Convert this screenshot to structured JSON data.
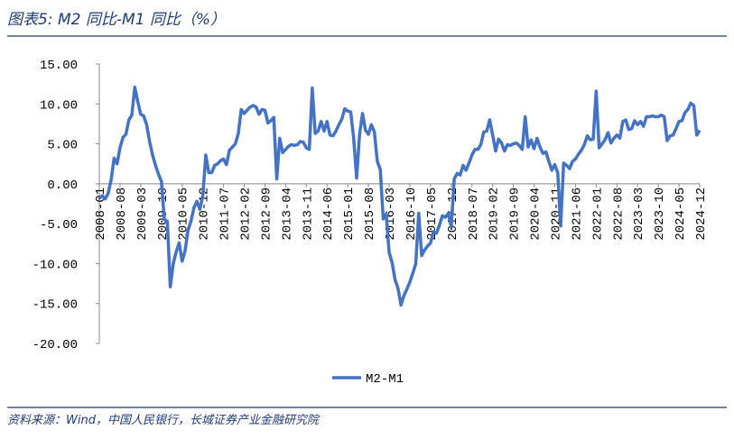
{
  "chart_data": {
    "type": "line",
    "title": "图表5:  M2 同比-M1 同比（%）",
    "source": "资料来源：Wind，中国人民银行，长城证券产业金融研究院",
    "categories": [
      "2008-01",
      null,
      null,
      null,
      null,
      null,
      null,
      "2008-08",
      null,
      null,
      null,
      null,
      null,
      null,
      "2009-03",
      null,
      null,
      null,
      null,
      null,
      null,
      "2009-10",
      null,
      null,
      null,
      null,
      null,
      null,
      "2010-05",
      null,
      null,
      null,
      null,
      null,
      null,
      "2010-12",
      null,
      null,
      null,
      null,
      null,
      null,
      "2011-07",
      null,
      null,
      null,
      null,
      null,
      null,
      "2012-02",
      null,
      null,
      null,
      null,
      null,
      null,
      "2012-09",
      null,
      null,
      null,
      null,
      null,
      null,
      "2013-04",
      null,
      null,
      null,
      null,
      null,
      null,
      "2013-11",
      null,
      null,
      null,
      null,
      null,
      null,
      "2014-06",
      null,
      null,
      null,
      null,
      null,
      null,
      "2015-01",
      null,
      null,
      null,
      null,
      null,
      null,
      "2015-08",
      null,
      null,
      null,
      null,
      null,
      null,
      "2016-03",
      null,
      null,
      null,
      null,
      null,
      null,
      "2016-10",
      null,
      null,
      null,
      null,
      null,
      null,
      "2017-05",
      null,
      null,
      null,
      null,
      null,
      null,
      "2017-12",
      null,
      null,
      null,
      null,
      null,
      null,
      "2018-07",
      null,
      null,
      null,
      null,
      null,
      null,
      "2019-02",
      null,
      null,
      null,
      null,
      null,
      null,
      "2019-09",
      null,
      null,
      null,
      null,
      null,
      null,
      "2020-04",
      null,
      null,
      null,
      null,
      null,
      null,
      "2020-11",
      null,
      null,
      null,
      null,
      null,
      null,
      "2021-06",
      null,
      null,
      null,
      null,
      null,
      null,
      "2022-01",
      null,
      null,
      null,
      null,
      null,
      null,
      "2022-08",
      null,
      null,
      null,
      null,
      null,
      null,
      "2023-03",
      null,
      null,
      null,
      null,
      null,
      null,
      "2023-10",
      null,
      null,
      null,
      null,
      null,
      null,
      "2024-05",
      null,
      null,
      null,
      null,
      null,
      null,
      "2024-12"
    ],
    "series": [
      {
        "name": "M2-M1",
        "color": "#4472c4",
        "values": [
          -1.8,
          -1.5,
          -1.9,
          -1.2,
          0.5,
          3.2,
          2.5,
          4.5,
          5.8,
          6.2,
          8.0,
          8.6,
          12.1,
          10.3,
          8.7,
          8.5,
          7.4,
          5.3,
          3.6,
          2.3,
          1.2,
          0.3,
          -4.5,
          -4.7,
          -12.9,
          -10.0,
          -8.5,
          -7.4,
          -9.7,
          -8.4,
          -5.8,
          -4.7,
          -3.0,
          -2.2,
          -3.2,
          -1.5,
          3.6,
          1.4,
          1.4,
          2.3,
          2.5,
          2.9,
          3.1,
          2.4,
          4.2,
          4.6,
          5.0,
          6.3,
          9.3,
          8.8,
          9.2,
          9.6,
          9.8,
          9.6,
          8.7,
          9.3,
          9.2,
          7.6,
          7.9,
          8.3,
          0.6,
          5.7,
          3.9,
          4.3,
          4.7,
          4.9,
          4.8,
          4.9,
          5.3,
          5.2,
          4.5,
          4.3,
          12.0,
          6.3,
          6.6,
          7.8,
          6.6,
          7.8,
          6.1,
          6.0,
          6.6,
          7.4,
          8.1,
          9.4,
          9.1,
          9.0,
          5.7,
          0.7,
          6.2,
          8.8,
          6.7,
          6.2,
          7.4,
          6.5,
          2.8,
          1.8,
          -4.4,
          -3.8,
          -8.6,
          -9.9,
          -12.0,
          -13.1,
          -15.2,
          -14.0,
          -13.2,
          -12.3,
          -11.2,
          -10.0,
          -3.7,
          -9.0,
          -8.3,
          -7.8,
          -7.4,
          -6.0,
          -6.2,
          -5.2,
          -4.0,
          -4.2,
          -3.7,
          -5.4,
          0.6,
          1.3,
          1.1,
          2.3,
          1.7,
          2.6,
          3.6,
          4.3,
          4.3,
          4.9,
          6.5,
          6.6,
          8.0,
          6.1,
          4.1,
          5.6,
          5.1,
          4.1,
          4.9,
          4.8,
          5.0,
          5.1,
          4.8,
          4.3,
          8.4,
          4.6,
          5.5,
          4.4,
          5.7,
          4.6,
          3.8,
          4.0,
          2.8,
          1.7,
          2.4,
          1.4,
          -5.3,
          2.6,
          2.3,
          1.9,
          2.8,
          3.1,
          3.7,
          4.2,
          4.9,
          6.0,
          5.5,
          5.6,
          11.6,
          4.5,
          5.0,
          5.5,
          6.4,
          5.1,
          5.7,
          6.1,
          5.7,
          7.8,
          8.0,
          6.8,
          6.9,
          7.9,
          7.4,
          7.8,
          7.2,
          8.4,
          8.4,
          8.5,
          8.4,
          8.4,
          8.6,
          8.4,
          5.4,
          6.0,
          6.1,
          6.9,
          7.8,
          7.9,
          8.9,
          9.3,
          10.1,
          9.8,
          6.1,
          6.7
        ]
      }
    ],
    "ylim": [
      -20,
      15
    ],
    "yticks": [
      {
        "value": -20,
        "label": "-20.00"
      },
      {
        "value": -15,
        "label": "-15.00"
      },
      {
        "value": -10,
        "label": "-10.00"
      },
      {
        "value": -5,
        "label": "-5.00"
      },
      {
        "value": 0,
        "label": "0.00"
      },
      {
        "value": 5,
        "label": "5.00"
      },
      {
        "value": 10,
        "label": "10.00"
      },
      {
        "value": 15,
        "label": "15.00"
      }
    ],
    "grid": false
  }
}
